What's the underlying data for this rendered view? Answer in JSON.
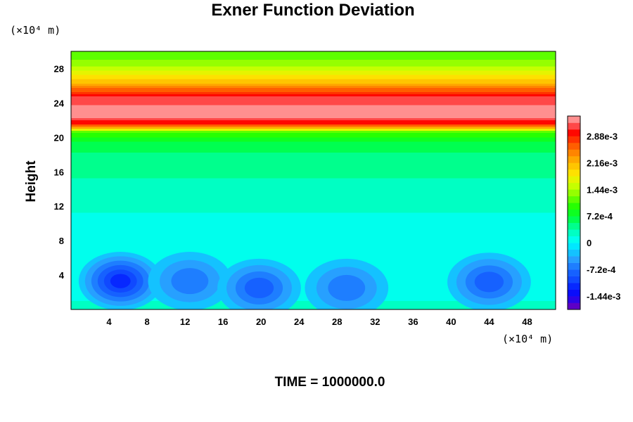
{
  "chart_data": {
    "type": "heatmap",
    "title": "Exner Function Deviation",
    "ylabel": "Height",
    "xlabel": "",
    "x_unit": "(×10⁴ m)",
    "y_unit": "(×10⁴ m)",
    "xlim": [
      0,
      51
    ],
    "ylim": [
      0,
      30
    ],
    "x_ticks": [
      "4",
      "8",
      "12",
      "16",
      "20",
      "24",
      "28",
      "32",
      "36",
      "40",
      "44",
      "48"
    ],
    "y_ticks": [
      "4",
      "8",
      "12",
      "16",
      "20",
      "24",
      "28"
    ],
    "x_tick_values": [
      4,
      8,
      12,
      16,
      20,
      24,
      28,
      32,
      36,
      40,
      44,
      48
    ],
    "y_tick_values": [
      4,
      8,
      12,
      16,
      20,
      24,
      28
    ],
    "colorbar": {
      "min": -0.0018,
      "max": 0.00342,
      "step": 0.00018,
      "labels": [
        "2.88e-3",
        "2.16e-3",
        "1.44e-3",
        "7.2e-4",
        "0",
        "-7.2e-4",
        "-1.44e-3"
      ],
      "label_values": [
        0.00288,
        0.00216,
        0.00144,
        0.00072,
        0,
        -0.00072,
        -0.00144
      ]
    },
    "field_description": {
      "vertical_profile": [
        {
          "height": 0,
          "value": 0.0002
        },
        {
          "height": 6,
          "value": 5e-05
        },
        {
          "height": 12,
          "value": 0.0002
        },
        {
          "height": 16,
          "value": 0.0004
        },
        {
          "height": 19,
          "value": 0.0006
        },
        {
          "height": 20.5,
          "value": 0.0011
        },
        {
          "height": 21.3,
          "value": 0.0028
        },
        {
          "height": 22.5,
          "value": 0.0034
        },
        {
          "height": 24.5,
          "value": 0.0031
        },
        {
          "height": 26.5,
          "value": 0.002
        },
        {
          "height": 28.5,
          "value": 0.0013
        },
        {
          "height": 30,
          "value": 0.0011
        }
      ],
      "minima": [
        {
          "x": 5.2,
          "y": 3.3,
          "value": -0.0011
        },
        {
          "x": 12.5,
          "y": 3.3,
          "value": -0.0007
        },
        {
          "x": 19.8,
          "y": 2.5,
          "value": -0.0008
        },
        {
          "x": 29,
          "y": 2.5,
          "value": -0.0007
        },
        {
          "x": 44,
          "y": 3.2,
          "value": -0.0009
        }
      ]
    },
    "footer": "TIME = 1000000.0",
    "colors": {
      "background": "#ffffff",
      "axis": "#000000"
    }
  }
}
